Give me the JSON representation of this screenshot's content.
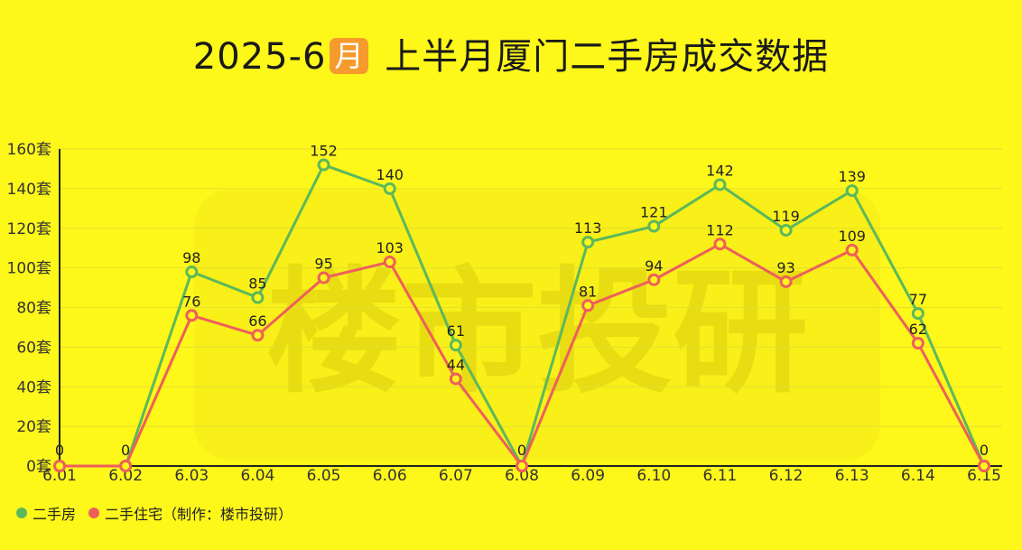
{
  "title_prefix": "2025-6",
  "title_badge": "月",
  "title_suffix": "上半月厦门二手房成交数据",
  "watermark": "楼市投研",
  "legend": [
    {
      "label": "二手房",
      "color": "#5cb85c"
    },
    {
      "label": "二手住宅（制作：楼市投研）",
      "color": "#ee5f5b"
    }
  ],
  "chart_data": {
    "type": "line",
    "title": "2025-6月 上半月厦门二手房成交数据",
    "categories": [
      "6.01",
      "6.02",
      "6.03",
      "6.04",
      "6.05",
      "6.06",
      "6.07",
      "6.08",
      "6.09",
      "6.10",
      "6.11",
      "6.12",
      "6.13",
      "6.14",
      "6.15"
    ],
    "y_ticks": [
      "0套",
      "20套",
      "40套",
      "60套",
      "80套",
      "100套",
      "120套",
      "140套",
      "160套"
    ],
    "ylim": [
      0,
      160
    ],
    "grid": true,
    "legend_position": "bottom-left",
    "series": [
      {
        "name": "二手房",
        "color": "#5cb85c",
        "values": [
          0,
          0,
          98,
          85,
          152,
          140,
          61,
          0,
          113,
          121,
          142,
          119,
          139,
          77,
          0
        ]
      },
      {
        "name": "二手住宅",
        "color": "#ee5f5b",
        "values": [
          0,
          0,
          76,
          66,
          95,
          103,
          44,
          0,
          81,
          94,
          112,
          93,
          109,
          62,
          0
        ]
      }
    ]
  }
}
